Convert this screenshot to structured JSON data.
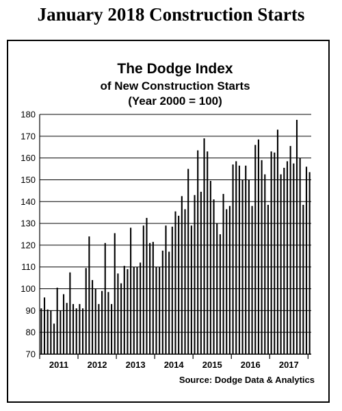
{
  "page_title": "January 2018 Construction Starts",
  "chart_data": {
    "type": "bar",
    "title": "The Dodge Index",
    "subtitle_lines": [
      "of New Construction Starts",
      "(Year 2000 = 100)"
    ],
    "source": "Source:  Dodge Data & Analytics",
    "ylim": [
      70,
      180
    ],
    "yticks": [
      70,
      80,
      90,
      100,
      110,
      120,
      130,
      140,
      150,
      160,
      170,
      180
    ],
    "grid": true,
    "year_labels": [
      "2011",
      "2012",
      "2013",
      "2014",
      "2015",
      "2016",
      "2017"
    ],
    "bar_color": "#000000",
    "values": [
      91,
      96,
      90.5,
      90,
      84,
      100.5,
      90,
      97.5,
      93.5,
      107.5,
      93,
      91,
      93,
      91,
      109.5,
      124,
      104,
      100,
      93,
      99,
      121,
      98.5,
      93,
      125.5,
      107,
      102.5,
      110.5,
      109,
      128,
      110,
      110,
      112,
      129,
      132.5,
      121,
      121.5,
      110,
      110,
      117.5,
      129,
      117,
      128.5,
      135.5,
      133.5,
      142.5,
      136.5,
      155,
      129,
      143,
      163.5,
      144.5,
      169,
      163,
      149.5,
      141,
      130,
      125,
      143.5,
      136.5,
      138,
      157,
      158.5,
      156.5,
      150,
      156.5,
      150,
      138,
      166,
      168.5,
      159,
      152.5,
      138.5,
      163,
      162.5,
      173,
      152.5,
      155.5,
      158.5,
      165.5,
      157.5,
      177.5,
      160,
      138.5,
      156,
      153.5
    ]
  }
}
